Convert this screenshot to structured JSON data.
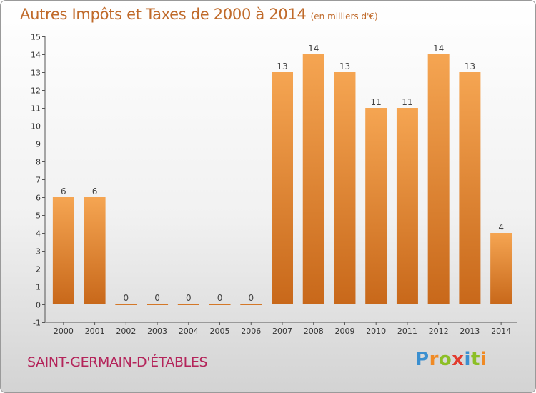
{
  "title": "Autres Impôts et Taxes de 2000 à 2014",
  "unit_note": "(en milliers d'€)",
  "commune": "SAINT-GERMAIN-D'ÉTABLES",
  "logo": {
    "letters": [
      "P",
      "r",
      "o",
      "x",
      "i",
      "t",
      "i"
    ],
    "colors": [
      "#3a8fd0",
      "#f08a24",
      "#8cbf26",
      "#e23b2e",
      "#3a8fd0",
      "#8cbf26",
      "#f08a24"
    ]
  },
  "colors": {
    "bar_light": "#f5a552",
    "bar_dark": "#c8681a",
    "title": "#c06a2a",
    "commune": "#b4245a"
  },
  "chart_data": {
    "type": "bar",
    "title": "Autres Impôts et Taxes de 2000 à 2014",
    "subtitle": "(en milliers d'€)",
    "categories": [
      "2000",
      "2001",
      "2002",
      "2003",
      "2004",
      "2005",
      "2006",
      "2007",
      "2008",
      "2009",
      "2010",
      "2011",
      "2012",
      "2013",
      "2014"
    ],
    "values": [
      6,
      6,
      0,
      0,
      0,
      0,
      0,
      13,
      14,
      13,
      11,
      11,
      14,
      13,
      4
    ],
    "ylim": [
      -1,
      15
    ],
    "yticks": [
      -1,
      0,
      1,
      2,
      3,
      4,
      5,
      6,
      7,
      8,
      9,
      10,
      11,
      12,
      13,
      14,
      15
    ],
    "grid": false,
    "data_labels": true
  }
}
